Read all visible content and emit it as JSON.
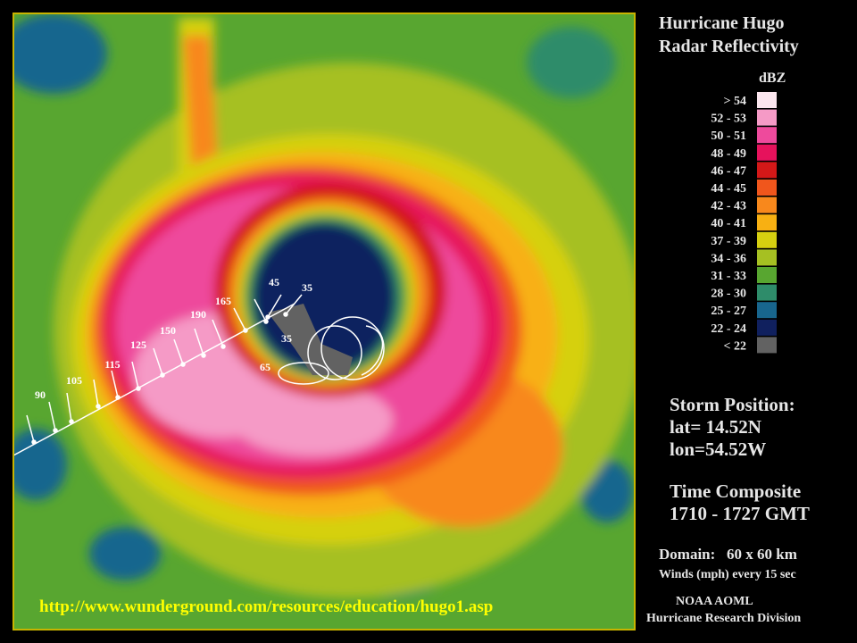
{
  "title": [
    "Hurricane Hugo",
    "Radar Reflectivity"
  ],
  "legend": {
    "unit": "dBZ",
    "items": [
      {
        "label": "> 54",
        "color": "#fbe6ee"
      },
      {
        "label": "52 - 53",
        "color": "#f59ac6"
      },
      {
        "label": "50 - 51",
        "color": "#ee4a9c"
      },
      {
        "label": "48 - 49",
        "color": "#e6125c"
      },
      {
        "label": "46 - 47",
        "color": "#d41818"
      },
      {
        "label": "44 - 45",
        "color": "#f0561c"
      },
      {
        "label": "42 - 43",
        "color": "#f8881c"
      },
      {
        "label": "40 - 41",
        "color": "#f8b012"
      },
      {
        "label": "37 - 39",
        "color": "#d6d010"
      },
      {
        "label": "34 - 36",
        "color": "#a6c022"
      },
      {
        "label": "31 - 33",
        "color": "#58a630"
      },
      {
        "label": "28 - 30",
        "color": "#2e8c6a"
      },
      {
        "label": "25 - 27",
        "color": "#18668e"
      },
      {
        "label": "22 - 24",
        "color": "#10205e"
      },
      {
        "label": "< 22",
        "color": "#626262"
      }
    ]
  },
  "storm_position": {
    "heading": "Storm Position:",
    "lat": "lat= 14.52N",
    "lon": "lon=54.52W"
  },
  "time_composite": {
    "heading": "Time Composite",
    "range": "1710 - 1727 GMT"
  },
  "domain": {
    "text": "Domain:   60 x 60 km",
    "winds": "Winds (mph) every 15 sec"
  },
  "credit": [
    "NOAA AOML",
    "Hurricane Research Division"
  ],
  "url": "http://www.wunderground.com/resources/education/hugo1.asp",
  "wind_labels": [
    "90",
    "105",
    "115",
    "125",
    "150",
    "190",
    "165",
    "45",
    "35",
    "35",
    "65"
  ]
}
